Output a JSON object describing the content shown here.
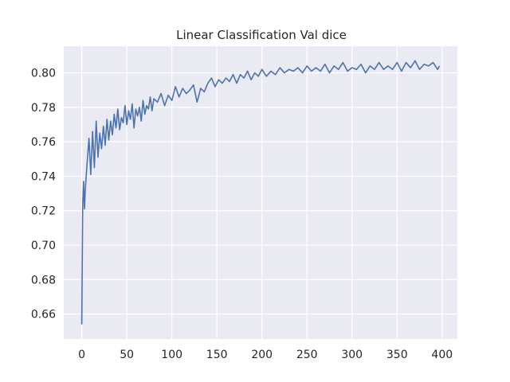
{
  "chart_data": {
    "type": "line",
    "title": "Linear Classification Val dice",
    "xlabel": "",
    "ylabel": "",
    "xlim": [
      -20,
      417
    ],
    "ylim": [
      0.6455,
      0.8155
    ],
    "x_ticks": [
      0,
      50,
      100,
      150,
      200,
      250,
      300,
      350,
      400
    ],
    "y_ticks": [
      0.66,
      0.68,
      0.7,
      0.72,
      0.74,
      0.76,
      0.78,
      0.8
    ],
    "grid": true,
    "background": "#eaeaf2",
    "grid_color": "#ffffff",
    "series": [
      {
        "color": "#4c72b0",
        "x": [
          0,
          1,
          2,
          3,
          4,
          6,
          8,
          10,
          12,
          14,
          16,
          18,
          20,
          22,
          24,
          26,
          28,
          30,
          32,
          34,
          36,
          38,
          40,
          42,
          44,
          46,
          48,
          50,
          52,
          54,
          56,
          58,
          60,
          62,
          64,
          66,
          68,
          70,
          72,
          74,
          76,
          78,
          80,
          84,
          88,
          92,
          96,
          100,
          104,
          108,
          112,
          116,
          120,
          124,
          128,
          132,
          136,
          140,
          144,
          148,
          152,
          156,
          160,
          164,
          168,
          172,
          176,
          180,
          184,
          188,
          192,
          196,
          200,
          205,
          210,
          215,
          220,
          225,
          230,
          235,
          240,
          245,
          250,
          255,
          260,
          265,
          270,
          275,
          280,
          285,
          290,
          295,
          300,
          305,
          310,
          315,
          320,
          325,
          330,
          335,
          340,
          345,
          350,
          355,
          360,
          365,
          370,
          375,
          380,
          385,
          390,
          395,
          397
        ],
        "values": [
          0.654,
          0.722,
          0.737,
          0.721,
          0.733,
          0.748,
          0.762,
          0.741,
          0.766,
          0.745,
          0.772,
          0.751,
          0.765,
          0.756,
          0.769,
          0.758,
          0.773,
          0.761,
          0.772,
          0.764,
          0.776,
          0.768,
          0.779,
          0.767,
          0.774,
          0.771,
          0.781,
          0.77,
          0.778,
          0.773,
          0.782,
          0.768,
          0.779,
          0.775,
          0.78,
          0.772,
          0.784,
          0.776,
          0.781,
          0.779,
          0.786,
          0.778,
          0.785,
          0.783,
          0.788,
          0.781,
          0.787,
          0.784,
          0.792,
          0.786,
          0.791,
          0.788,
          0.79,
          0.793,
          0.783,
          0.791,
          0.789,
          0.794,
          0.797,
          0.792,
          0.796,
          0.794,
          0.797,
          0.795,
          0.799,
          0.794,
          0.799,
          0.797,
          0.801,
          0.796,
          0.8,
          0.798,
          0.802,
          0.798,
          0.801,
          0.799,
          0.803,
          0.8,
          0.802,
          0.801,
          0.803,
          0.8,
          0.804,
          0.801,
          0.803,
          0.801,
          0.805,
          0.8,
          0.804,
          0.802,
          0.806,
          0.801,
          0.803,
          0.802,
          0.805,
          0.8,
          0.804,
          0.802,
          0.806,
          0.802,
          0.804,
          0.802,
          0.806,
          0.801,
          0.806,
          0.803,
          0.807,
          0.802,
          0.805,
          0.804,
          0.806,
          0.802,
          0.804
        ]
      }
    ]
  }
}
